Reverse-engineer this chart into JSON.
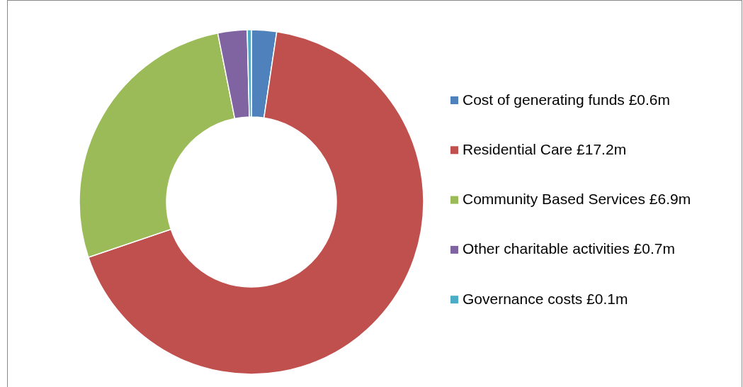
{
  "chart_data": {
    "type": "donut",
    "categories": [
      "Cost of generating funds",
      "Residential Care",
      "Community Based Services",
      "Other charitable activities",
      "Governance costs"
    ],
    "values": [
      0.6,
      17.2,
      6.9,
      0.7,
      0.1
    ],
    "value_labels": [
      "£0.6m",
      "£17.2m",
      "£6.9m",
      "£0.7m",
      "£0.1m"
    ],
    "colors": [
      "#4f81bd",
      "#c0504d",
      "#9bbb59",
      "#8064a2",
      "#4bacc6"
    ],
    "legend": "right"
  }
}
